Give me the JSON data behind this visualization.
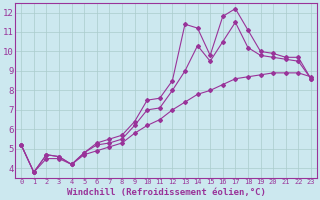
{
  "background_color": "#cce8ef",
  "line_color": "#993399",
  "grid_color": "#aacccc",
  "xlabel": "Windchill (Refroidissement éolien,°C)",
  "ylim": [
    3.5,
    12.5
  ],
  "xlim": [
    -0.5,
    23.5
  ],
  "yticks": [
    4,
    5,
    6,
    7,
    8,
    9,
    10,
    11,
    12
  ],
  "xticks": [
    0,
    1,
    2,
    3,
    4,
    5,
    6,
    7,
    8,
    9,
    10,
    11,
    12,
    13,
    14,
    15,
    16,
    17,
    18,
    19,
    20,
    21,
    22,
    23
  ],
  "line1_x": [
    0,
    1,
    2,
    3,
    4,
    5,
    6,
    7,
    8,
    9,
    10,
    11,
    12,
    13,
    14,
    15,
    16,
    17,
    18,
    19,
    20,
    21,
    22,
    23
  ],
  "line1_y": [
    5.2,
    3.8,
    4.7,
    4.6,
    4.2,
    4.8,
    5.3,
    5.5,
    5.7,
    6.4,
    7.5,
    7.6,
    8.5,
    11.4,
    11.2,
    9.8,
    11.8,
    12.2,
    11.1,
    10.0,
    9.9,
    9.7,
    9.7,
    8.6
  ],
  "line2_x": [
    0,
    1,
    2,
    3,
    4,
    5,
    6,
    7,
    8,
    9,
    10,
    11,
    12,
    13,
    14,
    15,
    16,
    17,
    18,
    19,
    20,
    21,
    22,
    23
  ],
  "line2_y": [
    5.2,
    3.8,
    4.7,
    4.6,
    4.2,
    4.8,
    5.2,
    5.3,
    5.5,
    6.2,
    7.0,
    7.1,
    8.0,
    9.0,
    10.3,
    9.5,
    10.5,
    11.5,
    10.2,
    9.8,
    9.7,
    9.6,
    9.5,
    8.6
  ],
  "line3_x": [
    0,
    1,
    2,
    3,
    4,
    5,
    6,
    7,
    8,
    9,
    10,
    11,
    12,
    13,
    14,
    15,
    16,
    17,
    18,
    19,
    20,
    21,
    22,
    23
  ],
  "line3_y": [
    5.2,
    3.8,
    4.5,
    4.5,
    4.2,
    4.7,
    4.9,
    5.1,
    5.3,
    5.8,
    6.2,
    6.5,
    7.0,
    7.4,
    7.8,
    8.0,
    8.3,
    8.6,
    8.7,
    8.8,
    8.9,
    8.9,
    8.9,
    8.7
  ]
}
